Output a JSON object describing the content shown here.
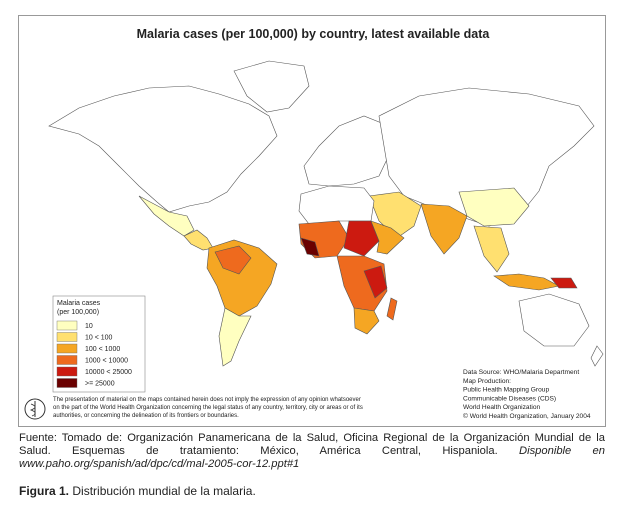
{
  "map": {
    "title": "Malaria cases (per 100,000) by country, latest available data",
    "legend": {
      "title": [
        "Malaria cases",
        "(per 100,000)"
      ],
      "items": [
        {
          "label": "10",
          "color": "#ffffc0"
        },
        {
          "label": "10 < 100",
          "color": "#ffe070"
        },
        {
          "label": "100 < 1000",
          "color": "#f5a623"
        },
        {
          "label": "1000 < 10000",
          "color": "#ee6a1e"
        },
        {
          "label": "10000 < 25000",
          "color": "#cc1a10"
        },
        {
          "label": ">= 25000",
          "color": "#6a0000"
        }
      ]
    },
    "source": [
      "Data Source: WHO/Malaria Department",
      "Map Production:",
      "Public Health Mapping Group",
      "Communicable Diseases (CDS)",
      "World Health Organization",
      "© World Health Organization, January 2004"
    ],
    "disclaimer": [
      "The presentation of material on the maps contained herein does not imply the expression of any opinion whatsoever",
      "on the part of the World Health Organization concerning the legal status of any country, territory, city or areas or of its",
      "authorities, or concerning the delineation of its frontiers or boundaries."
    ]
  },
  "caption": {
    "text": "Fuente: Tomado de: Organización Panamericana de la Salud, Oficina Regional de la Organización Mundial de la Salud. Esquemas de tratamiento: México, América Central, Hispaniola.",
    "link": "Disponible en www.paho.org/spanish/ad/dpc/cd/mal-2005-cor-12.ppt#1"
  },
  "figure": {
    "label": "Figura 1.",
    "text": "Distribución mundial de la malaria."
  }
}
